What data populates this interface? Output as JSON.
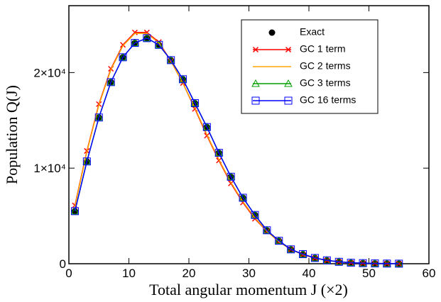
{
  "chart_data": {
    "type": "line",
    "x_label": "Total angular momentum J (×2)",
    "y_label": "Population Q(J)",
    "x": [
      1,
      3,
      5,
      7,
      9,
      11,
      13,
      15,
      17,
      19,
      21,
      23,
      25,
      27,
      29,
      31,
      33,
      35,
      37,
      39,
      41,
      43,
      45,
      47,
      49,
      51,
      53,
      55
    ],
    "xlim": [
      0,
      60
    ],
    "xticks": [
      0,
      10,
      20,
      30,
      40,
      50,
      60
    ],
    "ylim": [
      0,
      27000
    ],
    "yticks": [
      0,
      {
        "value": 10000,
        "label": "1×10⁴"
      },
      {
        "value": 20000,
        "label": "2×10⁴"
      }
    ],
    "legend": "upper right",
    "series": [
      {
        "name": "Exact",
        "color": "#000000",
        "marker": "circle",
        "line": false,
        "values": [
          5500,
          10700,
          15300,
          19000,
          21600,
          23100,
          23600,
          22900,
          21300,
          19300,
          16800,
          14300,
          11600,
          9100,
          6900,
          5100,
          3500,
          2400,
          1500,
          1000,
          600,
          350,
          200,
          100,
          60,
          30,
          15,
          5
        ]
      },
      {
        "name": "GC 1 term",
        "color": "#ff0000",
        "marker": "x",
        "line": true,
        "values": [
          6100,
          11800,
          16700,
          20400,
          22900,
          24200,
          24200,
          23200,
          21200,
          18900,
          16200,
          13400,
          10800,
          8400,
          6400,
          4700,
          3400,
          2300,
          1500,
          950,
          580,
          340,
          190,
          100,
          55,
          28,
          14,
          5
        ]
      },
      {
        "name": "GC 2 terms",
        "color": "#ffa500",
        "marker": "none",
        "line": true,
        "values": [
          6000,
          11700,
          16600,
          20300,
          22800,
          24100,
          24100,
          23100,
          21200,
          18900,
          16300,
          13500,
          10900,
          8500,
          6500,
          4800,
          3400,
          2300,
          1500,
          960,
          590,
          345,
          195,
          100,
          57,
          29,
          14,
          5
        ]
      },
      {
        "name": "GC 3 terms",
        "color": "#00a000",
        "marker": "triangle",
        "line": true,
        "values": [
          5500,
          10700,
          15300,
          19000,
          21600,
          23100,
          23600,
          22900,
          21300,
          19300,
          16800,
          14300,
          11600,
          9100,
          6900,
          5100,
          3500,
          2400,
          1500,
          1000,
          600,
          350,
          200,
          100,
          60,
          30,
          15,
          5
        ]
      },
      {
        "name": "GC 16 terms",
        "color": "#0000ff",
        "marker": "square",
        "line": true,
        "values": [
          5500,
          10700,
          15300,
          19000,
          21600,
          23100,
          23600,
          22900,
          21300,
          19300,
          16800,
          14300,
          11600,
          9100,
          6900,
          5100,
          3500,
          2400,
          1500,
          1000,
          600,
          350,
          200,
          100,
          60,
          30,
          15,
          5
        ]
      }
    ]
  }
}
